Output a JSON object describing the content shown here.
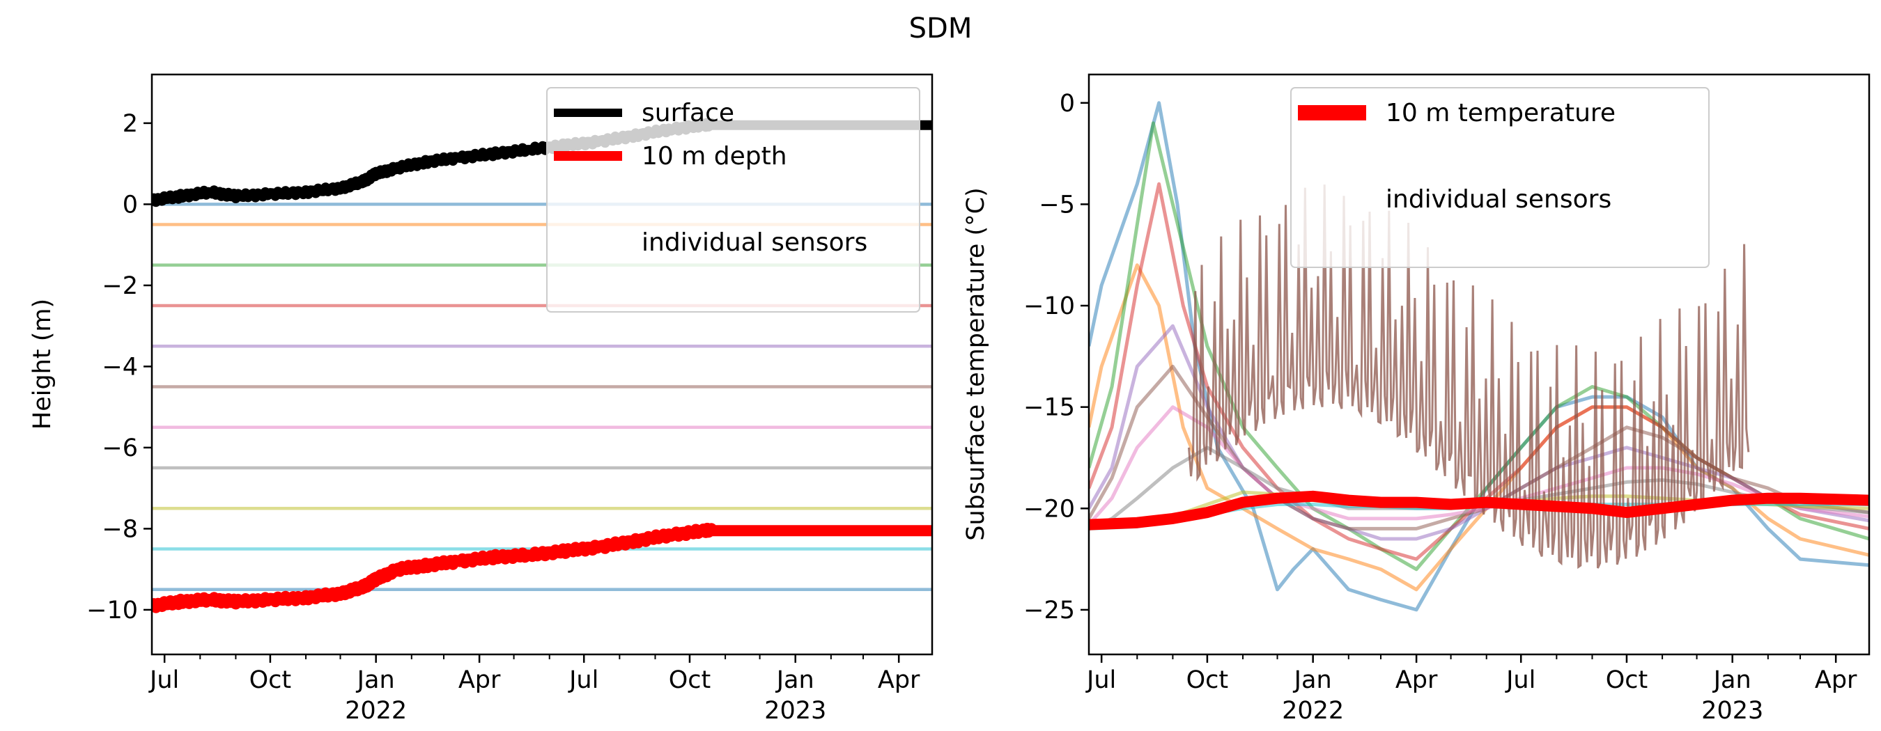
{
  "figure": {
    "title": "SDM"
  },
  "chart_data": [
    {
      "type": "line",
      "id": "height",
      "title": "",
      "xlabel": "",
      "ylabel": "Height (m)",
      "xlim": [
        "2021-06-20",
        "2023-04-30"
      ],
      "ylim": [
        -11.1,
        3.2
      ],
      "yticks": [
        2,
        0,
        -2,
        -4,
        -6,
        -8,
        -10
      ],
      "ytick_labels": [
        "2",
        "0",
        "−2",
        "−4",
        "−6",
        "−8",
        "−10"
      ],
      "xticks": [
        {
          "date": "2021-07-01",
          "label": "Jul",
          "year": ""
        },
        {
          "date": "2021-10-01",
          "label": "Oct",
          "year": ""
        },
        {
          "date": "2022-01-01",
          "label": "Jan",
          "year": "2022"
        },
        {
          "date": "2022-04-01",
          "label": "Apr",
          "year": ""
        },
        {
          "date": "2022-07-01",
          "label": "Jul",
          "year": ""
        },
        {
          "date": "2022-10-01",
          "label": "Oct",
          "year": ""
        },
        {
          "date": "2023-01-01",
          "label": "Jan",
          "year": "2023"
        },
        {
          "date": "2023-04-01",
          "label": "Apr",
          "year": ""
        }
      ],
      "legend": {
        "placement": "upper-right",
        "entries": [
          {
            "label": "surface",
            "color": "#000000"
          },
          {
            "label": "10 m depth",
            "color": "#ff0000"
          },
          {
            "label": "individual sensors",
            "color": "none"
          }
        ]
      },
      "series": [
        {
          "name": "surface",
          "color": "#000000",
          "x": [
            "2021-06-20",
            "2021-07-15",
            "2021-08-10",
            "2021-09-01",
            "2021-10-01",
            "2021-11-01",
            "2021-12-01",
            "2021-12-20",
            "2022-01-01",
            "2022-01-20",
            "2022-02-15",
            "2022-03-15",
            "2022-04-15",
            "2022-05-15",
            "2022-06-15",
            "2022-07-15",
            "2022-08-15",
            "2022-09-15",
            "2022-10-15",
            "2022-11-01",
            "2023-01-01",
            "2023-04-30"
          ],
          "y": [
            0.1,
            0.2,
            0.3,
            0.2,
            0.25,
            0.3,
            0.4,
            0.55,
            0.75,
            0.9,
            1.05,
            1.15,
            1.25,
            1.35,
            1.45,
            1.55,
            1.7,
            1.85,
            1.95,
            1.95,
            1.95,
            1.95
          ]
        },
        {
          "name": "10 m depth",
          "color": "#ff0000",
          "x": [
            "2021-06-20",
            "2021-07-15",
            "2021-08-10",
            "2021-09-01",
            "2021-10-01",
            "2021-11-01",
            "2021-12-01",
            "2021-12-20",
            "2022-01-01",
            "2022-01-20",
            "2022-02-15",
            "2022-03-15",
            "2022-04-15",
            "2022-05-15",
            "2022-06-15",
            "2022-07-15",
            "2022-08-15",
            "2022-09-15",
            "2022-10-15",
            "2022-11-01",
            "2023-01-01",
            "2023-04-30"
          ],
          "y": [
            -9.9,
            -9.8,
            -9.75,
            -9.8,
            -9.75,
            -9.7,
            -9.6,
            -9.45,
            -9.25,
            -9.0,
            -8.9,
            -8.8,
            -8.7,
            -8.65,
            -8.55,
            -8.45,
            -8.3,
            -8.15,
            -8.05,
            -8.05,
            -8.05,
            -8.05
          ]
        }
      ],
      "sensor_levels": [
        {
          "y": 0.0,
          "color": "#1f77b4"
        },
        {
          "y": -0.5,
          "color": "#ff7f0e"
        },
        {
          "y": -1.5,
          "color": "#2ca02c"
        },
        {
          "y": -2.5,
          "color": "#d62728"
        },
        {
          "y": -3.5,
          "color": "#9467bd"
        },
        {
          "y": -4.5,
          "color": "#8c564b"
        },
        {
          "y": -5.5,
          "color": "#e377c2"
        },
        {
          "y": -6.5,
          "color": "#7f7f7f"
        },
        {
          "y": -7.5,
          "color": "#bcbd22"
        },
        {
          "y": -8.5,
          "color": "#17becf"
        },
        {
          "y": -9.5,
          "color": "#1f77b4"
        }
      ]
    },
    {
      "type": "line",
      "id": "temperature",
      "title": "",
      "xlabel": "",
      "ylabel": "Subsurface temperature (°C)",
      "xlim": [
        "2021-06-20",
        "2023-04-30"
      ],
      "ylim": [
        -27.2,
        1.4
      ],
      "yticks": [
        0,
        -5,
        -10,
        -15,
        -20,
        -25
      ],
      "ytick_labels": [
        "0",
        "−5",
        "−10",
        "−15",
        "−20",
        "−25"
      ],
      "xticks": [
        {
          "date": "2021-07-01",
          "label": "Jul",
          "year": ""
        },
        {
          "date": "2021-10-01",
          "label": "Oct",
          "year": ""
        },
        {
          "date": "2022-01-01",
          "label": "Jan",
          "year": "2022"
        },
        {
          "date": "2022-04-01",
          "label": "Apr",
          "year": ""
        },
        {
          "date": "2022-07-01",
          "label": "Jul",
          "year": ""
        },
        {
          "date": "2022-10-01",
          "label": "Oct",
          "year": ""
        },
        {
          "date": "2023-01-01",
          "label": "Jan",
          "year": "2023"
        },
        {
          "date": "2023-04-01",
          "label": "Apr",
          "year": ""
        }
      ],
      "legend": {
        "placement": "upper-center",
        "entries": [
          {
            "label": "10 m temperature",
            "color": "#ff0000"
          },
          {
            "label": "individual sensors",
            "color": "none"
          }
        ]
      },
      "series": [
        {
          "name": "10 m temperature",
          "color": "#ff0000",
          "x": [
            "2021-06-20",
            "2021-08-01",
            "2021-09-01",
            "2021-10-01",
            "2021-11-01",
            "2021-12-01",
            "2022-01-01",
            "2022-02-01",
            "2022-03-01",
            "2022-04-01",
            "2022-05-01",
            "2022-06-01",
            "2022-07-01",
            "2022-08-01",
            "2022-09-01",
            "2022-10-01",
            "2022-11-01",
            "2022-12-01",
            "2023-01-01",
            "2023-02-01",
            "2023-03-01",
            "2023-04-30"
          ],
          "y": [
            -20.8,
            -20.7,
            -20.5,
            -20.2,
            -19.7,
            -19.5,
            -19.4,
            -19.6,
            -19.7,
            -19.7,
            -19.8,
            -19.7,
            -19.8,
            -19.9,
            -20.0,
            -20.2,
            -20.0,
            -19.8,
            -19.6,
            -19.5,
            -19.5,
            -19.6
          ]
        }
      ],
      "sensor_series": [
        {
          "color": "#1f77b4",
          "x": [
            "2021-06-20",
            "2021-07-01",
            "2021-08-01",
            "2021-08-20",
            "2021-09-05",
            "2021-09-20",
            "2021-10-10",
            "2021-11-10",
            "2021-12-01",
            "2021-12-15",
            "2022-01-01",
            "2022-02-01",
            "2022-03-01",
            "2022-04-01",
            "2022-05-01",
            "2022-06-01",
            "2022-07-01",
            "2022-08-01",
            "2022-09-01",
            "2022-10-01",
            "2022-11-01",
            "2022-12-01",
            "2023-01-01",
            "2023-02-01",
            "2023-03-01",
            "2023-04-30"
          ],
          "y": [
            -12,
            -9,
            -4,
            0,
            -5,
            -12,
            -17,
            -20,
            -24,
            -23,
            -22,
            -24,
            -24.5,
            -25,
            -22,
            -19,
            -17,
            -15,
            -14.5,
            -14.5,
            -15.5,
            -18,
            -19,
            -21,
            -22.5,
            -22.8
          ]
        },
        {
          "color": "#ff7f0e",
          "x": [
            "2021-06-20",
            "2021-07-01",
            "2021-08-01",
            "2021-08-20",
            "2021-09-10",
            "2021-10-01",
            "2021-11-01",
            "2021-12-01",
            "2022-01-01",
            "2022-02-01",
            "2022-03-01",
            "2022-04-01",
            "2022-05-01",
            "2022-06-01",
            "2022-07-01",
            "2022-08-01",
            "2022-09-01",
            "2022-10-01",
            "2022-11-01",
            "2022-12-01",
            "2023-01-01",
            "2023-02-01",
            "2023-03-01",
            "2023-04-30"
          ],
          "y": [
            -16,
            -13,
            -8,
            -10,
            -16,
            -19,
            -20,
            -21,
            -22,
            -22.5,
            -23,
            -24,
            -22,
            -20,
            -18,
            -16,
            -15,
            -15,
            -16,
            -18,
            -19,
            -20.5,
            -21.5,
            -22.3
          ]
        },
        {
          "color": "#2ca02c",
          "x": [
            "2021-06-20",
            "2021-07-10",
            "2021-08-01",
            "2021-08-15",
            "2021-09-01",
            "2021-10-01",
            "2021-11-01",
            "2021-12-01",
            "2022-01-01",
            "2022-02-01",
            "2022-03-01",
            "2022-04-01",
            "2022-05-01",
            "2022-06-01",
            "2022-07-01",
            "2022-08-01",
            "2022-09-01",
            "2022-10-01",
            "2022-11-01",
            "2022-12-01",
            "2023-01-01",
            "2023-02-01",
            "2023-03-01",
            "2023-04-30"
          ],
          "y": [
            -18,
            -14,
            -6,
            -1,
            -5,
            -12,
            -16,
            -18,
            -20,
            -21,
            -22,
            -23,
            -21,
            -19,
            -17,
            -15,
            -14,
            -14.5,
            -16,
            -17.5,
            -18.5,
            -19.5,
            -20.5,
            -21.5
          ]
        },
        {
          "color": "#d62728",
          "x": [
            "2021-06-20",
            "2021-07-10",
            "2021-08-01",
            "2021-08-20",
            "2021-09-10",
            "2021-10-01",
            "2021-11-01",
            "2021-12-01",
            "2022-01-01",
            "2022-02-01",
            "2022-03-01",
            "2022-04-01",
            "2022-05-01",
            "2022-06-01",
            "2022-07-01",
            "2022-08-01",
            "2022-09-01",
            "2022-10-01",
            "2022-11-01",
            "2022-12-01",
            "2023-01-01",
            "2023-02-01",
            "2023-03-01",
            "2023-04-30"
          ],
          "y": [
            -19,
            -16,
            -9,
            -4,
            -10,
            -14,
            -17,
            -19,
            -20.5,
            -21.5,
            -22,
            -22.5,
            -21,
            -19.5,
            -18,
            -16,
            -15,
            -15,
            -16,
            -17.5,
            -18.5,
            -19.5,
            -20.3,
            -21
          ]
        },
        {
          "color": "#9467bd",
          "x": [
            "2021-06-20",
            "2021-07-10",
            "2021-08-01",
            "2021-09-01",
            "2021-10-01",
            "2021-11-01",
            "2021-12-01",
            "2022-01-01",
            "2022-02-01",
            "2022-03-01",
            "2022-04-01",
            "2022-05-01",
            "2022-06-01",
            "2022-07-01",
            "2022-08-01",
            "2022-09-01",
            "2022-10-01",
            "2022-11-01",
            "2022-12-01",
            "2023-01-01",
            "2023-02-01",
            "2023-03-01",
            "2023-04-30"
          ],
          "y": [
            -20,
            -18,
            -13,
            -11,
            -15,
            -18,
            -19.5,
            -20.5,
            -21,
            -21.5,
            -21.5,
            -21,
            -20,
            -19,
            -18,
            -17.5,
            -17,
            -17.5,
            -18,
            -18.5,
            -19.5,
            -20,
            -20.6
          ]
        },
        {
          "color": "#8c564b",
          "x": [
            "2021-06-20",
            "2021-07-10",
            "2021-08-01",
            "2021-09-01",
            "2021-10-01",
            "2021-11-01",
            "2021-12-01",
            "2022-01-01",
            "2022-02-01",
            "2022-03-01",
            "2022-04-01",
            "2022-05-01",
            "2022-06-01",
            "2022-07-01",
            "2022-08-01",
            "2022-09-01",
            "2022-10-01",
            "2022-11-01",
            "2022-12-01",
            "2023-01-01",
            "2023-02-01",
            "2023-03-01",
            "2023-04-30"
          ],
          "y": [
            -20.5,
            -18.5,
            -15,
            -13,
            -15.5,
            -18,
            -19.5,
            -20.5,
            -21,
            -21,
            -21,
            -20.5,
            -20,
            -19,
            -18,
            -17,
            -16,
            -16.5,
            -17.5,
            -18.5,
            -19,
            -19.7,
            -20.2
          ]
        },
        {
          "color": "#e377c2",
          "x": [
            "2021-06-20",
            "2021-07-10",
            "2021-08-01",
            "2021-09-01",
            "2021-10-01",
            "2021-11-01",
            "2021-12-01",
            "2022-01-01",
            "2022-02-01",
            "2022-03-01",
            "2022-04-01",
            "2022-05-01",
            "2022-06-01",
            "2022-07-01",
            "2022-08-01",
            "2022-09-01",
            "2022-10-01",
            "2022-11-01",
            "2022-12-01",
            "2023-01-01",
            "2023-02-01",
            "2023-03-01",
            "2023-04-30"
          ],
          "y": [
            -20.8,
            -19.5,
            -17,
            -15,
            -16,
            -18,
            -19.5,
            -20,
            -20.5,
            -20.5,
            -20.5,
            -20.3,
            -20,
            -19.5,
            -19,
            -18.5,
            -18,
            -18,
            -18.3,
            -18.8,
            -19.5,
            -20,
            -20.4
          ]
        },
        {
          "color": "#7f7f7f",
          "x": [
            "2021-06-20",
            "2021-07-10",
            "2021-08-01",
            "2021-09-01",
            "2021-10-01",
            "2021-11-01",
            "2021-12-01",
            "2022-01-01",
            "2022-02-01",
            "2022-03-01",
            "2022-04-01",
            "2022-05-01",
            "2022-06-01",
            "2022-07-01",
            "2022-08-01",
            "2022-09-01",
            "2022-10-01",
            "2022-11-01",
            "2022-12-01",
            "2023-01-01",
            "2023-02-01",
            "2023-03-01",
            "2023-04-30"
          ],
          "y": [
            -21,
            -20.5,
            -19.5,
            -18,
            -17,
            -18,
            -19,
            -19.5,
            -20,
            -20,
            -20,
            -20,
            -19.8,
            -19.6,
            -19.3,
            -19,
            -18.7,
            -18.6,
            -18.8,
            -19.2,
            -19.6,
            -19.9,
            -20.2
          ]
        },
        {
          "color": "#bcbd22",
          "x": [
            "2021-06-20",
            "2021-08-01",
            "2021-09-01",
            "2021-10-01",
            "2021-11-01",
            "2021-12-01",
            "2022-01-01",
            "2022-02-01",
            "2022-03-01",
            "2022-04-01",
            "2022-05-01",
            "2022-06-01",
            "2022-07-01",
            "2022-08-01",
            "2022-09-01",
            "2022-10-01",
            "2022-11-01",
            "2022-12-01",
            "2023-01-01",
            "2023-02-01",
            "2023-03-01",
            "2023-04-30"
          ],
          "y": [
            -21,
            -20.8,
            -20.4,
            -19.8,
            -19.2,
            -19.3,
            -19.6,
            -19.8,
            -19.9,
            -19.9,
            -19.9,
            -19.8,
            -19.7,
            -19.5,
            -19.4,
            -19.4,
            -19.5,
            -19.6,
            -19.7,
            -19.8,
            -19.9,
            -20
          ]
        },
        {
          "color": "#17becf",
          "x": [
            "2021-06-20",
            "2021-08-01",
            "2021-09-01",
            "2021-10-01",
            "2021-11-01",
            "2021-12-01",
            "2022-01-01",
            "2022-02-01",
            "2022-03-01",
            "2022-04-01",
            "2022-05-01",
            "2022-06-01",
            "2022-07-01",
            "2022-08-01",
            "2022-09-01",
            "2022-10-01",
            "2022-11-01",
            "2022-12-01",
            "2023-01-01",
            "2023-02-01",
            "2023-03-01",
            "2023-04-30"
          ],
          "y": [
            -21,
            -20.9,
            -20.6,
            -20.3,
            -20,
            -19.8,
            -19.8,
            -19.9,
            -19.9,
            -20,
            -20,
            -19.9,
            -19.9,
            -19.8,
            -19.8,
            -19.8,
            -19.8,
            -19.8,
            -19.8,
            -19.8,
            -19.8,
            -19.8
          ]
        }
      ]
    }
  ]
}
